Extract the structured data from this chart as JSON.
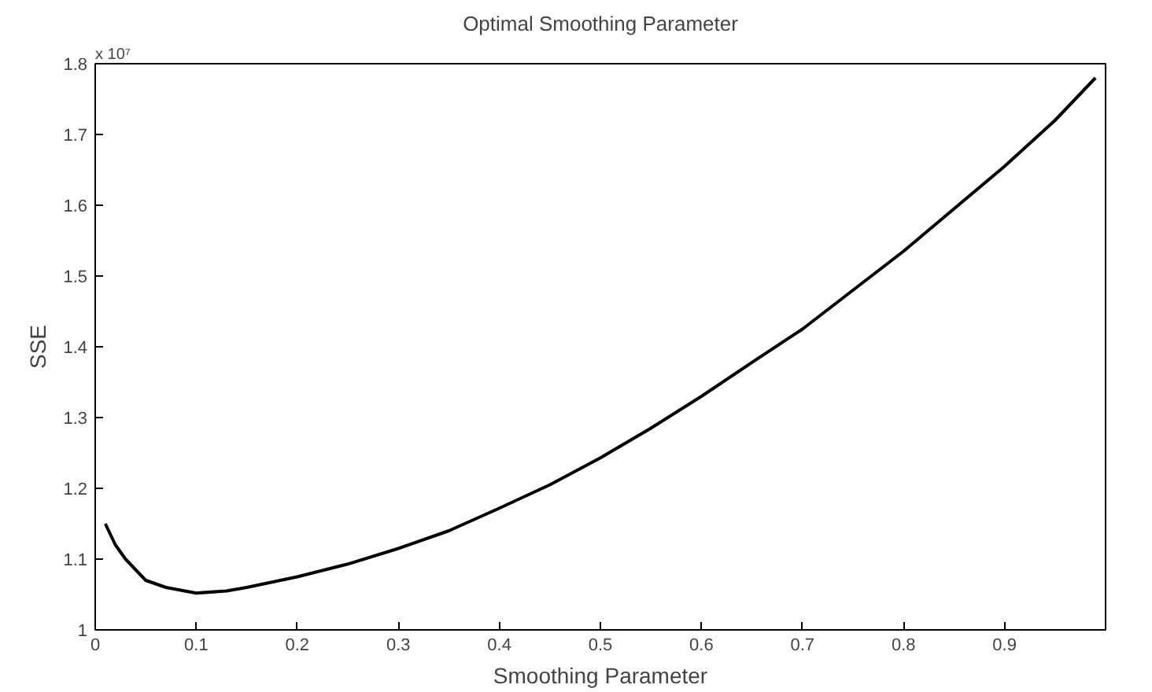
{
  "chart_data": {
    "type": "line",
    "title": "Optimal Smoothing Parameter",
    "xlabel": "Smoothing Parameter",
    "ylabel": "SSE",
    "annotations": [
      "x 10⁷"
    ],
    "x": [
      0.01,
      0.02,
      0.03,
      0.05,
      0.07,
      0.1,
      0.13,
      0.15,
      0.2,
      0.25,
      0.3,
      0.35,
      0.4,
      0.45,
      0.5,
      0.55,
      0.6,
      0.65,
      0.7,
      0.75,
      0.8,
      0.85,
      0.9,
      0.95,
      0.99
    ],
    "series": [
      {
        "color": "#000000",
        "values": [
          1.15,
          1.12,
          1.1,
          1.07,
          1.06,
          1.052,
          1.055,
          1.06,
          1.075,
          1.093,
          1.115,
          1.14,
          1.172,
          1.205,
          1.243,
          1.285,
          1.33,
          1.378,
          1.425,
          1.48,
          1.535,
          1.595,
          1.655,
          1.72,
          1.78
        ]
      }
    ],
    "xlim": [
      0,
      1
    ],
    "xticks": [
      0,
      0.1,
      0.2,
      0.3,
      0.4,
      0.5,
      0.6,
      0.7,
      0.8,
      0.9
    ],
    "ylim": [
      1,
      1.8
    ],
    "yticks": [
      1,
      1.1,
      1.2,
      1.3,
      1.4,
      1.5,
      1.6,
      1.7,
      1.8
    ],
    "grid": false,
    "marker": "none",
    "line_style": "solid"
  }
}
